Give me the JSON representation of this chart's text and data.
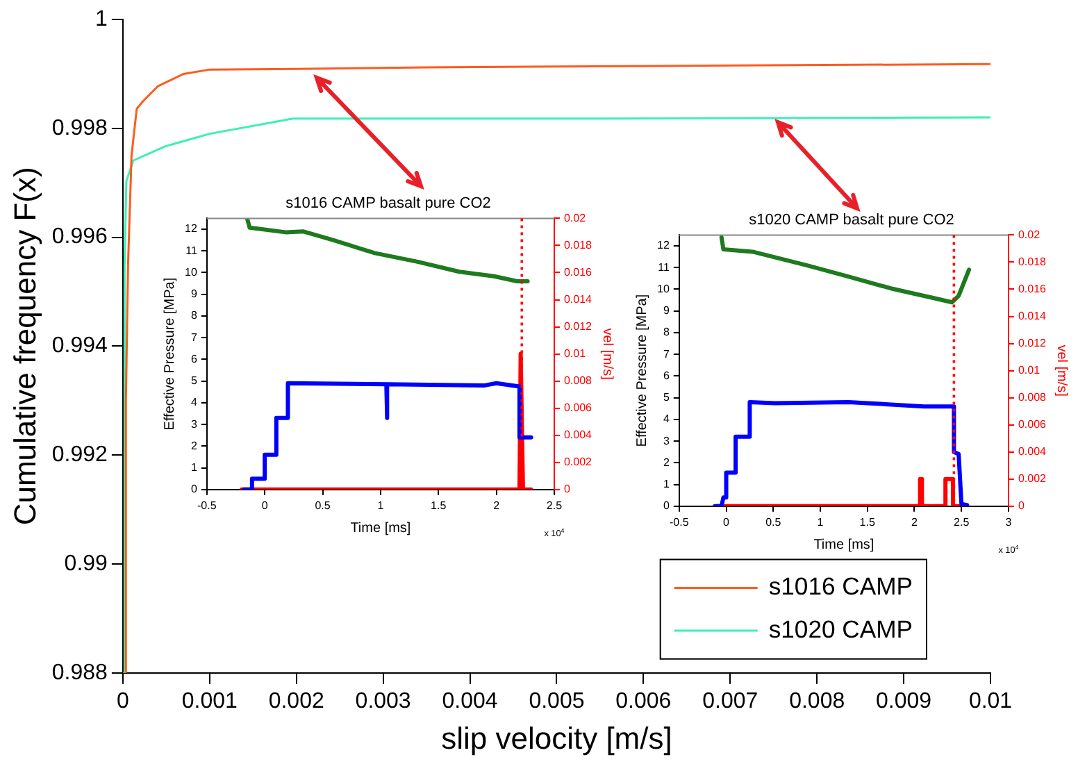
{
  "chart_data": [
    {
      "type": "line",
      "xlabel": "slip velocity [m/s]",
      "ylabel": "Cumulative frequency F(x)",
      "xlim": [
        0,
        0.01
      ],
      "ylim": [
        0.988,
        1
      ],
      "xticks": [
        0,
        0.001,
        0.002,
        0.003,
        0.004,
        0.005,
        0.006,
        0.007,
        0.008,
        0.009,
        0.01
      ],
      "yticks": [
        0.988,
        0.99,
        0.992,
        0.994,
        0.996,
        0.998,
        1
      ],
      "marker": "none",
      "line_style": "solid",
      "legend": "bottom right",
      "series": [
        {
          "name": "s1016 CAMP",
          "color": "#ff5a1e",
          "x": [
            3e-05,
            3.5e-05,
            6e-05,
            0.0001,
            0.00016,
            0.00024,
            0.0004,
            0.0007,
            0.001,
            0.002,
            0.0035,
            0.0065,
            0.01
          ],
          "values": [
            0.988,
            0.993,
            0.9955,
            0.9975,
            0.99836,
            0.99851,
            0.99877,
            0.999,
            0.99908,
            0.99909,
            0.99912,
            0.99915,
            0.99918
          ]
        },
        {
          "name": "s1020 CAMP",
          "color": "#3cf0b4",
          "x": [
            1e-05,
            2e-05,
            4e-05,
            0.00012,
            0.00049,
            0.001,
            0.00196,
            0.0055,
            0.01
          ],
          "values": [
            0.988,
            0.9955,
            0.99703,
            0.99741,
            0.99767,
            0.9979,
            0.99818,
            0.99818,
            0.9982
          ]
        }
      ]
    },
    {
      "type": "line",
      "title": "s1016 CAMP basalt pure CO2",
      "xlabel": "Time [ms]",
      "ylabel": "Effective Pressure [MPa]",
      "y2label": "vel [m/s]",
      "xlim": [
        -0.5,
        2.5
      ],
      "ylim": [
        0,
        12.5
      ],
      "y2lim": [
        0,
        0.02
      ],
      "xticks": [
        -0.5,
        0,
        0.5,
        1,
        1.5,
        2,
        2.5
      ],
      "yticks": [
        0,
        1,
        2,
        3,
        4,
        5,
        6,
        7,
        8,
        9,
        10,
        11,
        12
      ],
      "y2ticks": [
        0,
        0.002,
        0.004,
        0.006,
        0.008,
        0.01,
        0.012,
        0.014,
        0.016,
        0.018,
        0.02
      ],
      "marker": "none",
      "annotations": [
        "x 10$^{4}$"
      ],
      "ref_lines": [
        {
          "axis": "x",
          "value": 2.22,
          "color": "#ff0000",
          "line_style": "dotted"
        }
      ],
      "series": [
        {
          "color": "#1e7a1e",
          "x": [
            -0.15,
            -0.13,
            0.18,
            0.33,
            0.59,
            0.95,
            1.32,
            1.68,
            1.98,
            2.18,
            2.27
          ],
          "values": [
            12.45,
            12.07,
            11.86,
            11.9,
            11.5,
            10.9,
            10.5,
            10.04,
            9.83,
            9.6,
            9.6
          ]
        },
        {
          "color": "#0000ff",
          "x": [
            -0.18,
            -0.11,
            -0.11,
            0,
            0,
            0.1,
            0.1,
            0.2,
            0.2,
            1.05,
            1.05,
            1.06,
            1.06,
            1.9,
            2,
            2.2,
            2.2,
            2.3
          ],
          "values": [
            0,
            0,
            0.5,
            0.5,
            1.6,
            1.6,
            3.3,
            3.3,
            4.9,
            4.85,
            3.3,
            3.3,
            4.85,
            4.8,
            4.9,
            4.75,
            2.4,
            2.4
          ]
        },
        {
          "color": "#ff0000",
          "axis": "y2",
          "x": [
            -0.2,
            2.2,
            2.21,
            2.23,
            2.3
          ],
          "values": [
            0,
            0,
            0.01,
            0,
            0
          ]
        }
      ]
    },
    {
      "type": "line",
      "title": "s1020 CAMP basalt pure CO2",
      "xlabel": "Time [ms]",
      "ylabel": "Effective Pressure [MPa]",
      "y2label": "vel [m/s]",
      "xlim": [
        -0.5,
        3
      ],
      "ylim": [
        0,
        12.5
      ],
      "y2lim": [
        0,
        0.02
      ],
      "xticks": [
        -0.5,
        0,
        0.5,
        1,
        1.5,
        2,
        2.5,
        3
      ],
      "yticks": [
        0,
        1,
        2,
        3,
        4,
        5,
        6,
        7,
        8,
        9,
        10,
        11,
        12
      ],
      "y2ticks": [
        0,
        0.002,
        0.004,
        0.006,
        0.008,
        0.01,
        0.012,
        0.014,
        0.016,
        0.018,
        0.02
      ],
      "marker": "none",
      "annotations": [
        "x 10$^{4}$"
      ],
      "ref_lines": [
        {
          "axis": "x",
          "value": 2.42,
          "color": "#ff0000",
          "line_style": "dotted"
        }
      ],
      "series": [
        {
          "color": "#1e7a1e",
          "x": [
            -0.05,
            -0.03,
            0.28,
            0.86,
            1.31,
            1.75,
            2.2,
            2.4,
            2.47,
            2.58
          ],
          "values": [
            12.4,
            11.84,
            11.73,
            11.1,
            10.57,
            10.04,
            9.6,
            9.4,
            9.7,
            10.9
          ]
        },
        {
          "color": "#0000ff",
          "x": [
            -0.12,
            -0.05,
            -0.03,
            0,
            0,
            0.1,
            0.1,
            0.25,
            0.25,
            0.52,
            1.3,
            2.1,
            2.42,
            2.42,
            2.47,
            2.5,
            2.56
          ],
          "values": [
            0,
            0,
            0.4,
            0.4,
            1.55,
            1.55,
            3.2,
            3.2,
            4.8,
            4.75,
            4.8,
            4.6,
            4.6,
            2.5,
            2.4,
            0.1,
            0.05
          ]
        },
        {
          "color": "#ff0000",
          "axis": "y2",
          "x": [
            -0.1,
            2.06,
            2.06,
            2.08,
            2.08,
            2.33,
            2.33,
            2.41,
            2.41,
            2.5
          ],
          "values": [
            0,
            0,
            0.002,
            0.002,
            0,
            0,
            0.002,
            0.002,
            0,
            0
          ]
        }
      ]
    }
  ]
}
